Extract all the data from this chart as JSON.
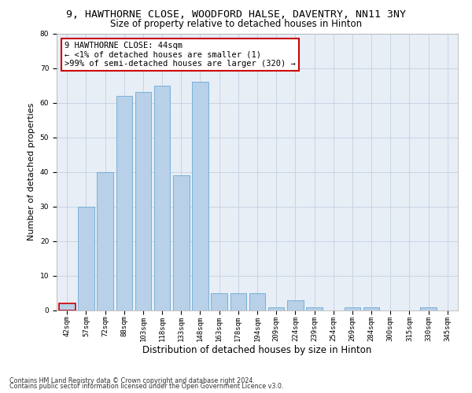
{
  "title_line1": "9, HAWTHORNE CLOSE, WOODFORD HALSE, DAVENTRY, NN11 3NY",
  "title_line2": "Size of property relative to detached houses in Hinton",
  "xlabel": "Distribution of detached houses by size in Hinton",
  "ylabel": "Number of detached properties",
  "categories": [
    "42sqm",
    "57sqm",
    "72sqm",
    "88sqm",
    "103sqm",
    "118sqm",
    "133sqm",
    "148sqm",
    "163sqm",
    "178sqm",
    "194sqm",
    "209sqm",
    "224sqm",
    "239sqm",
    "254sqm",
    "269sqm",
    "284sqm",
    "300sqm",
    "315sqm",
    "330sqm",
    "345sqm"
  ],
  "values": [
    2,
    30,
    40,
    62,
    63,
    65,
    39,
    66,
    5,
    5,
    5,
    1,
    3,
    1,
    0,
    1,
    1,
    0,
    0,
    1,
    0
  ],
  "bar_color": "#b8d0e8",
  "bar_edge_color": "#6aaad4",
  "highlight_bar_color": "#cc0000",
  "ylim": [
    0,
    80
  ],
  "yticks": [
    0,
    10,
    20,
    30,
    40,
    50,
    60,
    70,
    80
  ],
  "grid_color": "#c8d4e4",
  "background_color": "#e8eef6",
  "annotation_text": "9 HAWTHORNE CLOSE: 44sqm\n← <1% of detached houses are smaller (1)\n>99% of semi-detached houses are larger (320) →",
  "annotation_box_color": "#ffffff",
  "annotation_box_edge_color": "#cc0000",
  "footer_line1": "Contains HM Land Registry data © Crown copyright and database right 2024.",
  "footer_line2": "Contains public sector information licensed under the Open Government Licence v3.0.",
  "title_fontsize": 9.5,
  "subtitle_fontsize": 8.5,
  "tick_fontsize": 6.5,
  "ylabel_fontsize": 8,
  "xlabel_fontsize": 8.5,
  "footer_fontsize": 5.8,
  "annotation_fontsize": 7.5
}
